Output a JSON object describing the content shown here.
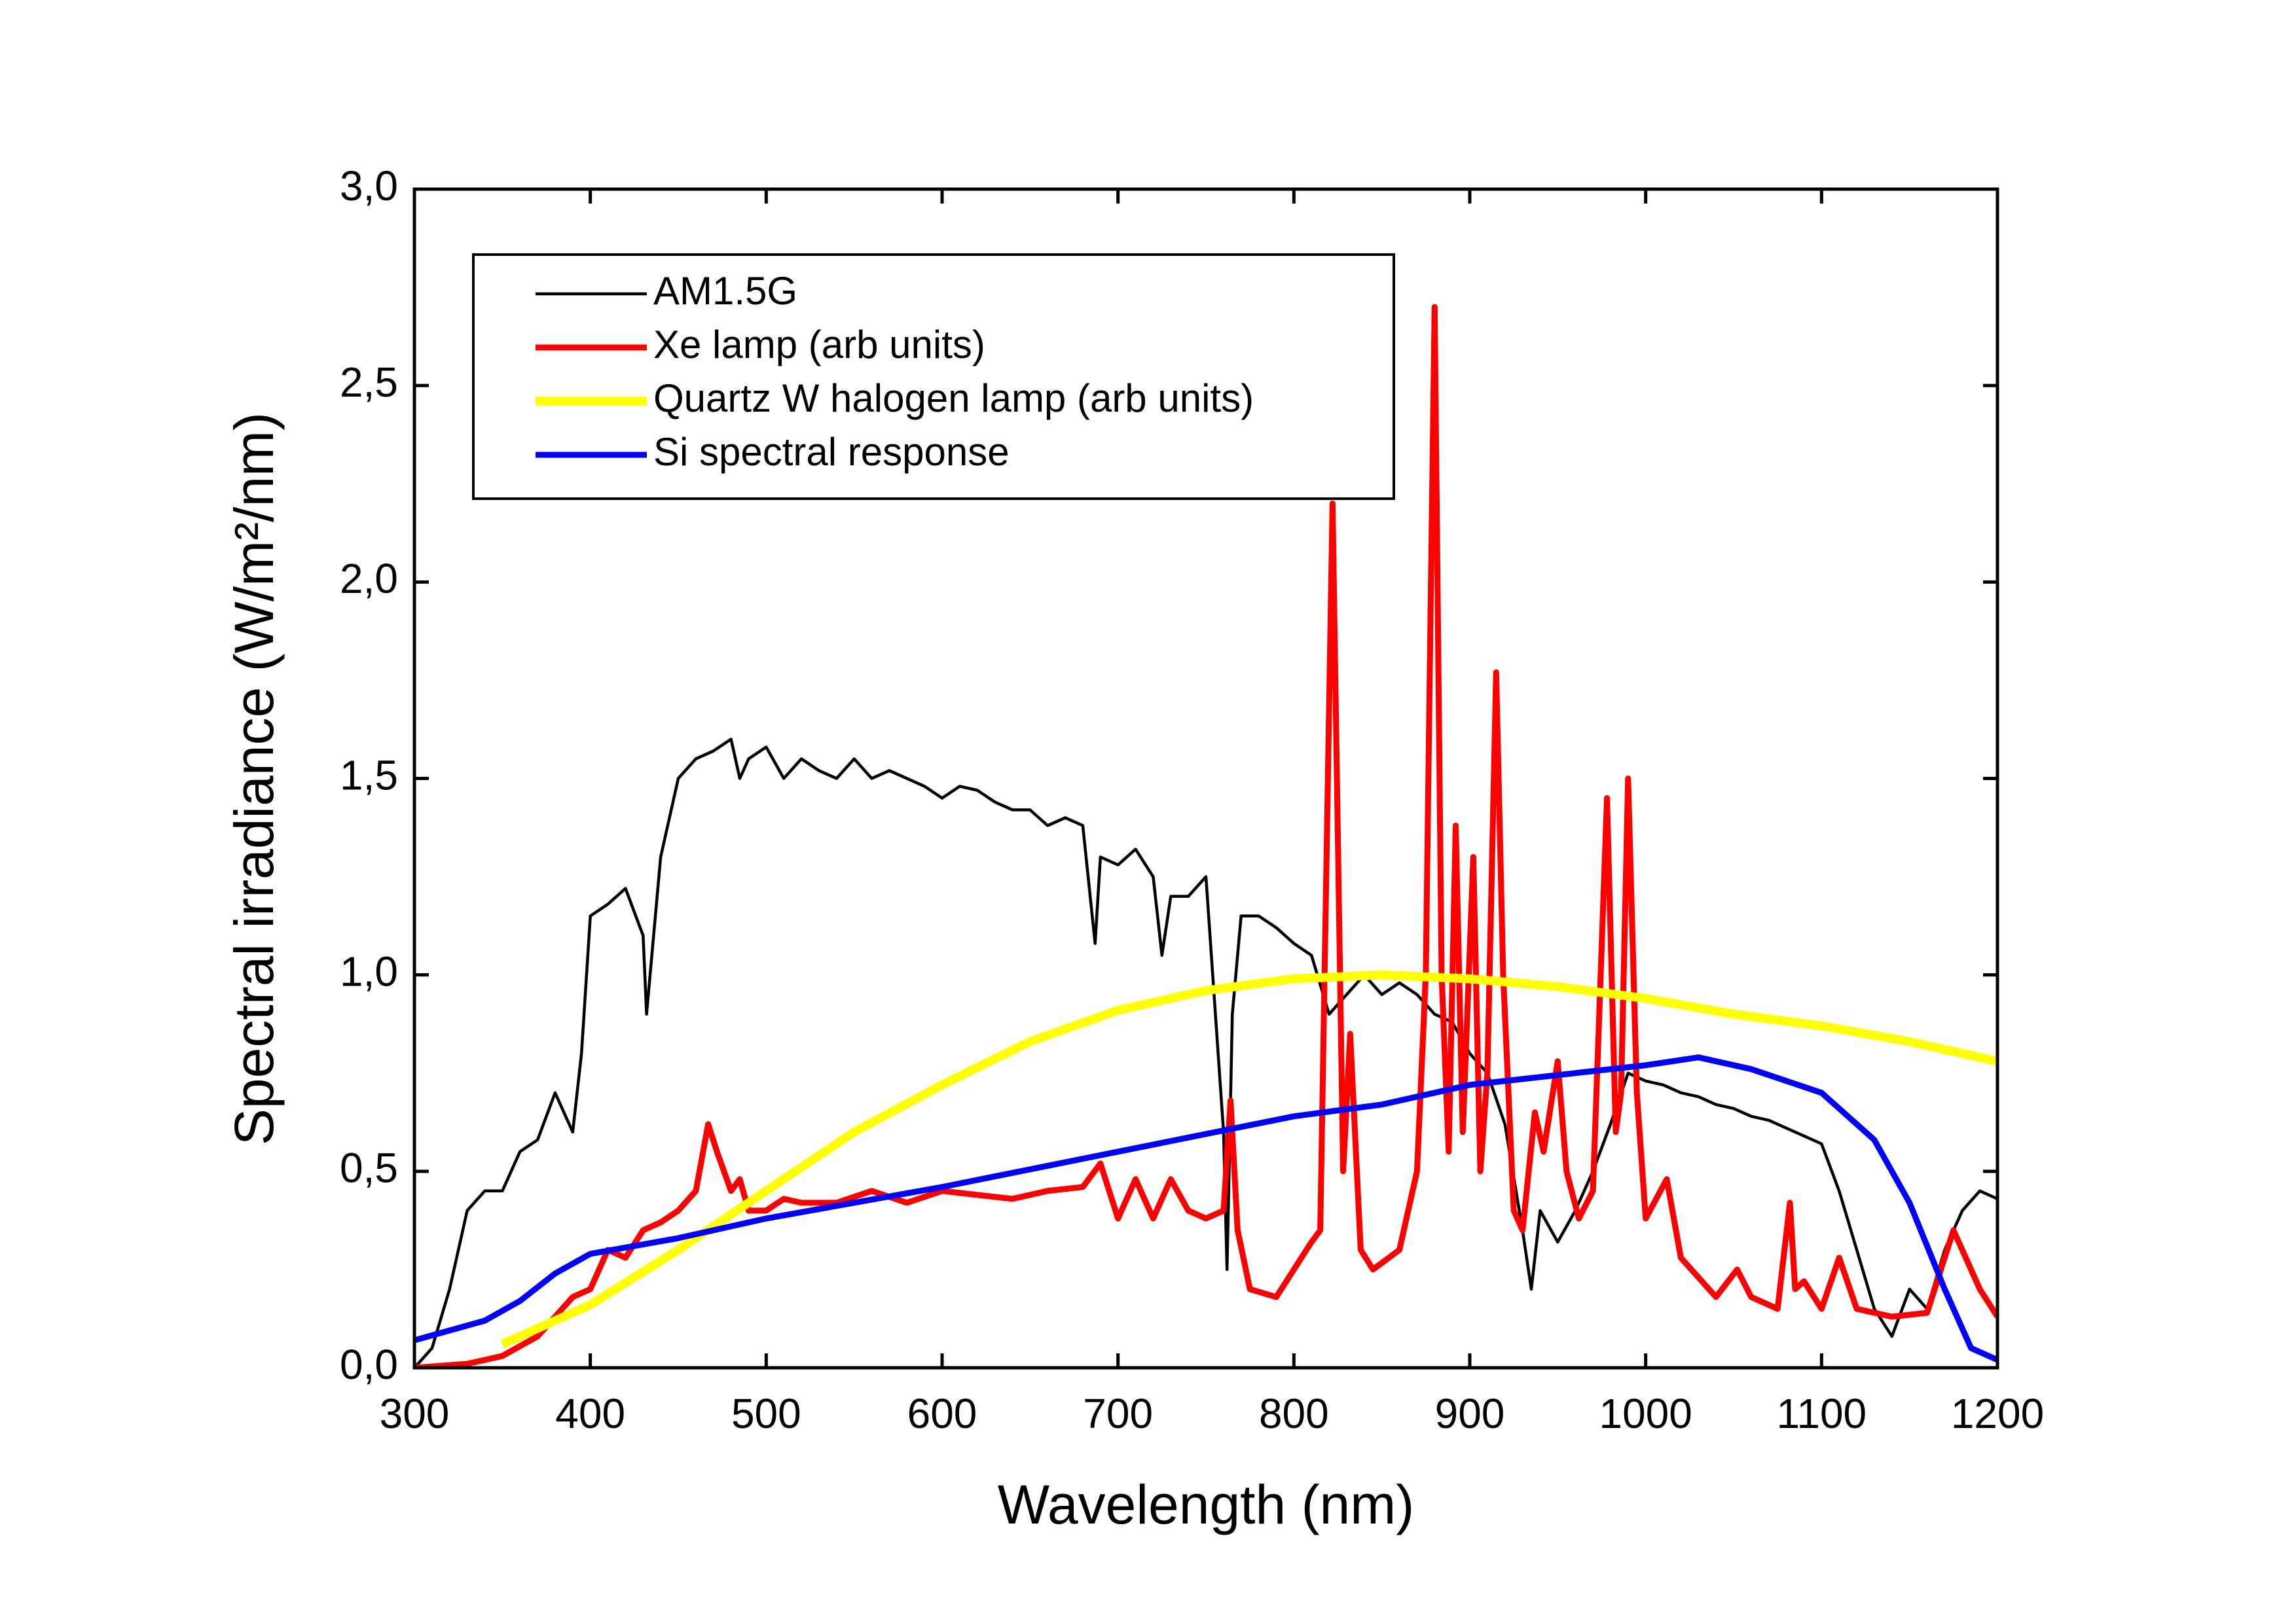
{
  "chart_data": {
    "type": "line",
    "x_label": "Wavelength (nm)",
    "y_label": "Spectral irradiance (W/m²/nm)",
    "xlim": [
      300,
      1200
    ],
    "xticks": [
      300,
      400,
      500,
      600,
      700,
      800,
      900,
      1000,
      1100,
      1200
    ],
    "ylim": [
      0,
      3
    ],
    "yticks": [
      {
        "value": 0,
        "label": "0,0"
      },
      {
        "value": 0.5,
        "label": "0,5"
      },
      {
        "value": 1,
        "label": "1,0"
      },
      {
        "value": 1.5,
        "label": "1,5"
      },
      {
        "value": 2,
        "label": "2,0"
      },
      {
        "value": 2.5,
        "label": "2,5"
      },
      {
        "value": 3,
        "label": "3,0"
      }
    ],
    "legend": "upper left",
    "series": [
      {
        "name": "AM1.5G",
        "color": "#000000",
        "width": 2,
        "x": [
          300,
          310,
          320,
          330,
          340,
          350,
          360,
          370,
          380,
          390,
          395,
          400,
          410,
          420,
          430,
          432,
          440,
          450,
          460,
          470,
          480,
          485,
          490,
          500,
          510,
          520,
          530,
          540,
          550,
          560,
          570,
          580,
          590,
          600,
          610,
          620,
          630,
          640,
          650,
          660,
          670,
          680,
          687,
          690,
          700,
          710,
          720,
          725,
          730,
          740,
          750,
          760,
          762,
          765,
          770,
          780,
          790,
          800,
          810,
          820,
          830,
          840,
          850,
          860,
          870,
          880,
          890,
          900,
          910,
          920,
          930,
          935,
          940,
          950,
          960,
          970,
          980,
          990,
          1000,
          1010,
          1020,
          1030,
          1040,
          1050,
          1060,
          1070,
          1080,
          1090,
          1100,
          1110,
          1120,
          1130,
          1140,
          1150,
          1160,
          1170,
          1180,
          1190,
          1200
        ],
        "values": [
          0,
          0.05,
          0.2,
          0.4,
          0.45,
          0.45,
          0.55,
          0.58,
          0.7,
          0.6,
          0.8,
          1.15,
          1.18,
          1.22,
          1.1,
          0.9,
          1.3,
          1.5,
          1.55,
          1.57,
          1.6,
          1.5,
          1.55,
          1.58,
          1.5,
          1.55,
          1.52,
          1.5,
          1.55,
          1.5,
          1.52,
          1.5,
          1.48,
          1.45,
          1.48,
          1.47,
          1.44,
          1.42,
          1.42,
          1.38,
          1.4,
          1.38,
          1.08,
          1.3,
          1.28,
          1.32,
          1.25,
          1.05,
          1.2,
          1.2,
          1.25,
          0.6,
          0.25,
          0.9,
          1.15,
          1.15,
          1.12,
          1.08,
          1.05,
          0.9,
          0.95,
          1,
          0.95,
          0.98,
          0.95,
          0.9,
          0.88,
          0.8,
          0.75,
          0.62,
          0.35,
          0.2,
          0.4,
          0.32,
          0.4,
          0.5,
          0.62,
          0.75,
          0.73,
          0.72,
          0.7,
          0.69,
          0.67,
          0.66,
          0.64,
          0.63,
          0.61,
          0.59,
          0.57,
          0.45,
          0.3,
          0.15,
          0.08,
          0.2,
          0.15,
          0.3,
          0.4,
          0.45,
          0.43
        ]
      },
      {
        "name": "Xe lamp (arb units)",
        "color": "#ff0000",
        "width": 4,
        "x": [
          300,
          330,
          350,
          370,
          390,
          400,
          410,
          420,
          430,
          440,
          450,
          460,
          467,
          472,
          480,
          485,
          490,
          500,
          510,
          520,
          540,
          560,
          580,
          600,
          620,
          640,
          660,
          680,
          690,
          700,
          710,
          720,
          730,
          740,
          750,
          760,
          764,
          768,
          775,
          790,
          800,
          810,
          815,
          822,
          828,
          832,
          838,
          845,
          860,
          870,
          875,
          880,
          884,
          888,
          892,
          896,
          902,
          906,
          910,
          915,
          919,
          925,
          930,
          937,
          942,
          950,
          955,
          962,
          970,
          978,
          983,
          986,
          990,
          995,
          1000,
          1012,
          1020,
          1040,
          1052,
          1060,
          1075,
          1082,
          1085,
          1090,
          1100,
          1110,
          1120,
          1140,
          1160,
          1175,
          1190,
          1200
        ],
        "values": [
          0,
          0.01,
          0.03,
          0.08,
          0.18,
          0.2,
          0.3,
          0.28,
          0.35,
          0.37,
          0.4,
          0.45,
          0.62,
          0.55,
          0.45,
          0.48,
          0.4,
          0.4,
          0.43,
          0.42,
          0.42,
          0.45,
          0.42,
          0.45,
          0.44,
          0.43,
          0.45,
          0.46,
          0.52,
          0.38,
          0.48,
          0.38,
          0.48,
          0.4,
          0.38,
          0.4,
          0.68,
          0.35,
          0.2,
          0.18,
          0.25,
          0.32,
          0.35,
          2.2,
          0.5,
          0.85,
          0.3,
          0.25,
          0.3,
          0.5,
          1,
          2.7,
          1,
          0.55,
          1.38,
          0.6,
          1.3,
          0.5,
          0.75,
          1.77,
          1,
          0.4,
          0.35,
          0.65,
          0.55,
          0.78,
          0.5,
          0.38,
          0.45,
          1.45,
          0.6,
          0.7,
          1.5,
          0.7,
          0.38,
          0.48,
          0.28,
          0.18,
          0.25,
          0.18,
          0.15,
          0.42,
          0.2,
          0.22,
          0.15,
          0.28,
          0.15,
          0.13,
          0.14,
          0.35,
          0.2,
          0.13
        ]
      },
      {
        "name": "Quartz W halogen lamp (arb units)",
        "color": "#ffff00",
        "width": 6,
        "x": [
          350,
          400,
          450,
          500,
          550,
          600,
          650,
          700,
          750,
          800,
          850,
          900,
          950,
          1000,
          1050,
          1100,
          1150,
          1200
        ],
        "values": [
          0.06,
          0.16,
          0.3,
          0.45,
          0.6,
          0.72,
          0.83,
          0.91,
          0.96,
          0.99,
          1,
          0.99,
          0.97,
          0.94,
          0.9,
          0.87,
          0.83,
          0.78
        ]
      },
      {
        "name": "Si spectral response",
        "color": "#0000ff",
        "width": 4,
        "x": [
          300,
          340,
          360,
          380,
          400,
          450,
          500,
          600,
          700,
          800,
          850,
          900,
          1000,
          1030,
          1060,
          1100,
          1130,
          1150,
          1170,
          1185,
          1200
        ],
        "values": [
          0.07,
          0.12,
          0.17,
          0.24,
          0.29,
          0.33,
          0.38,
          0.46,
          0.55,
          0.64,
          0.67,
          0.72,
          0.77,
          0.79,
          0.76,
          0.7,
          0.58,
          0.42,
          0.2,
          0.05,
          0.02
        ]
      }
    ]
  }
}
